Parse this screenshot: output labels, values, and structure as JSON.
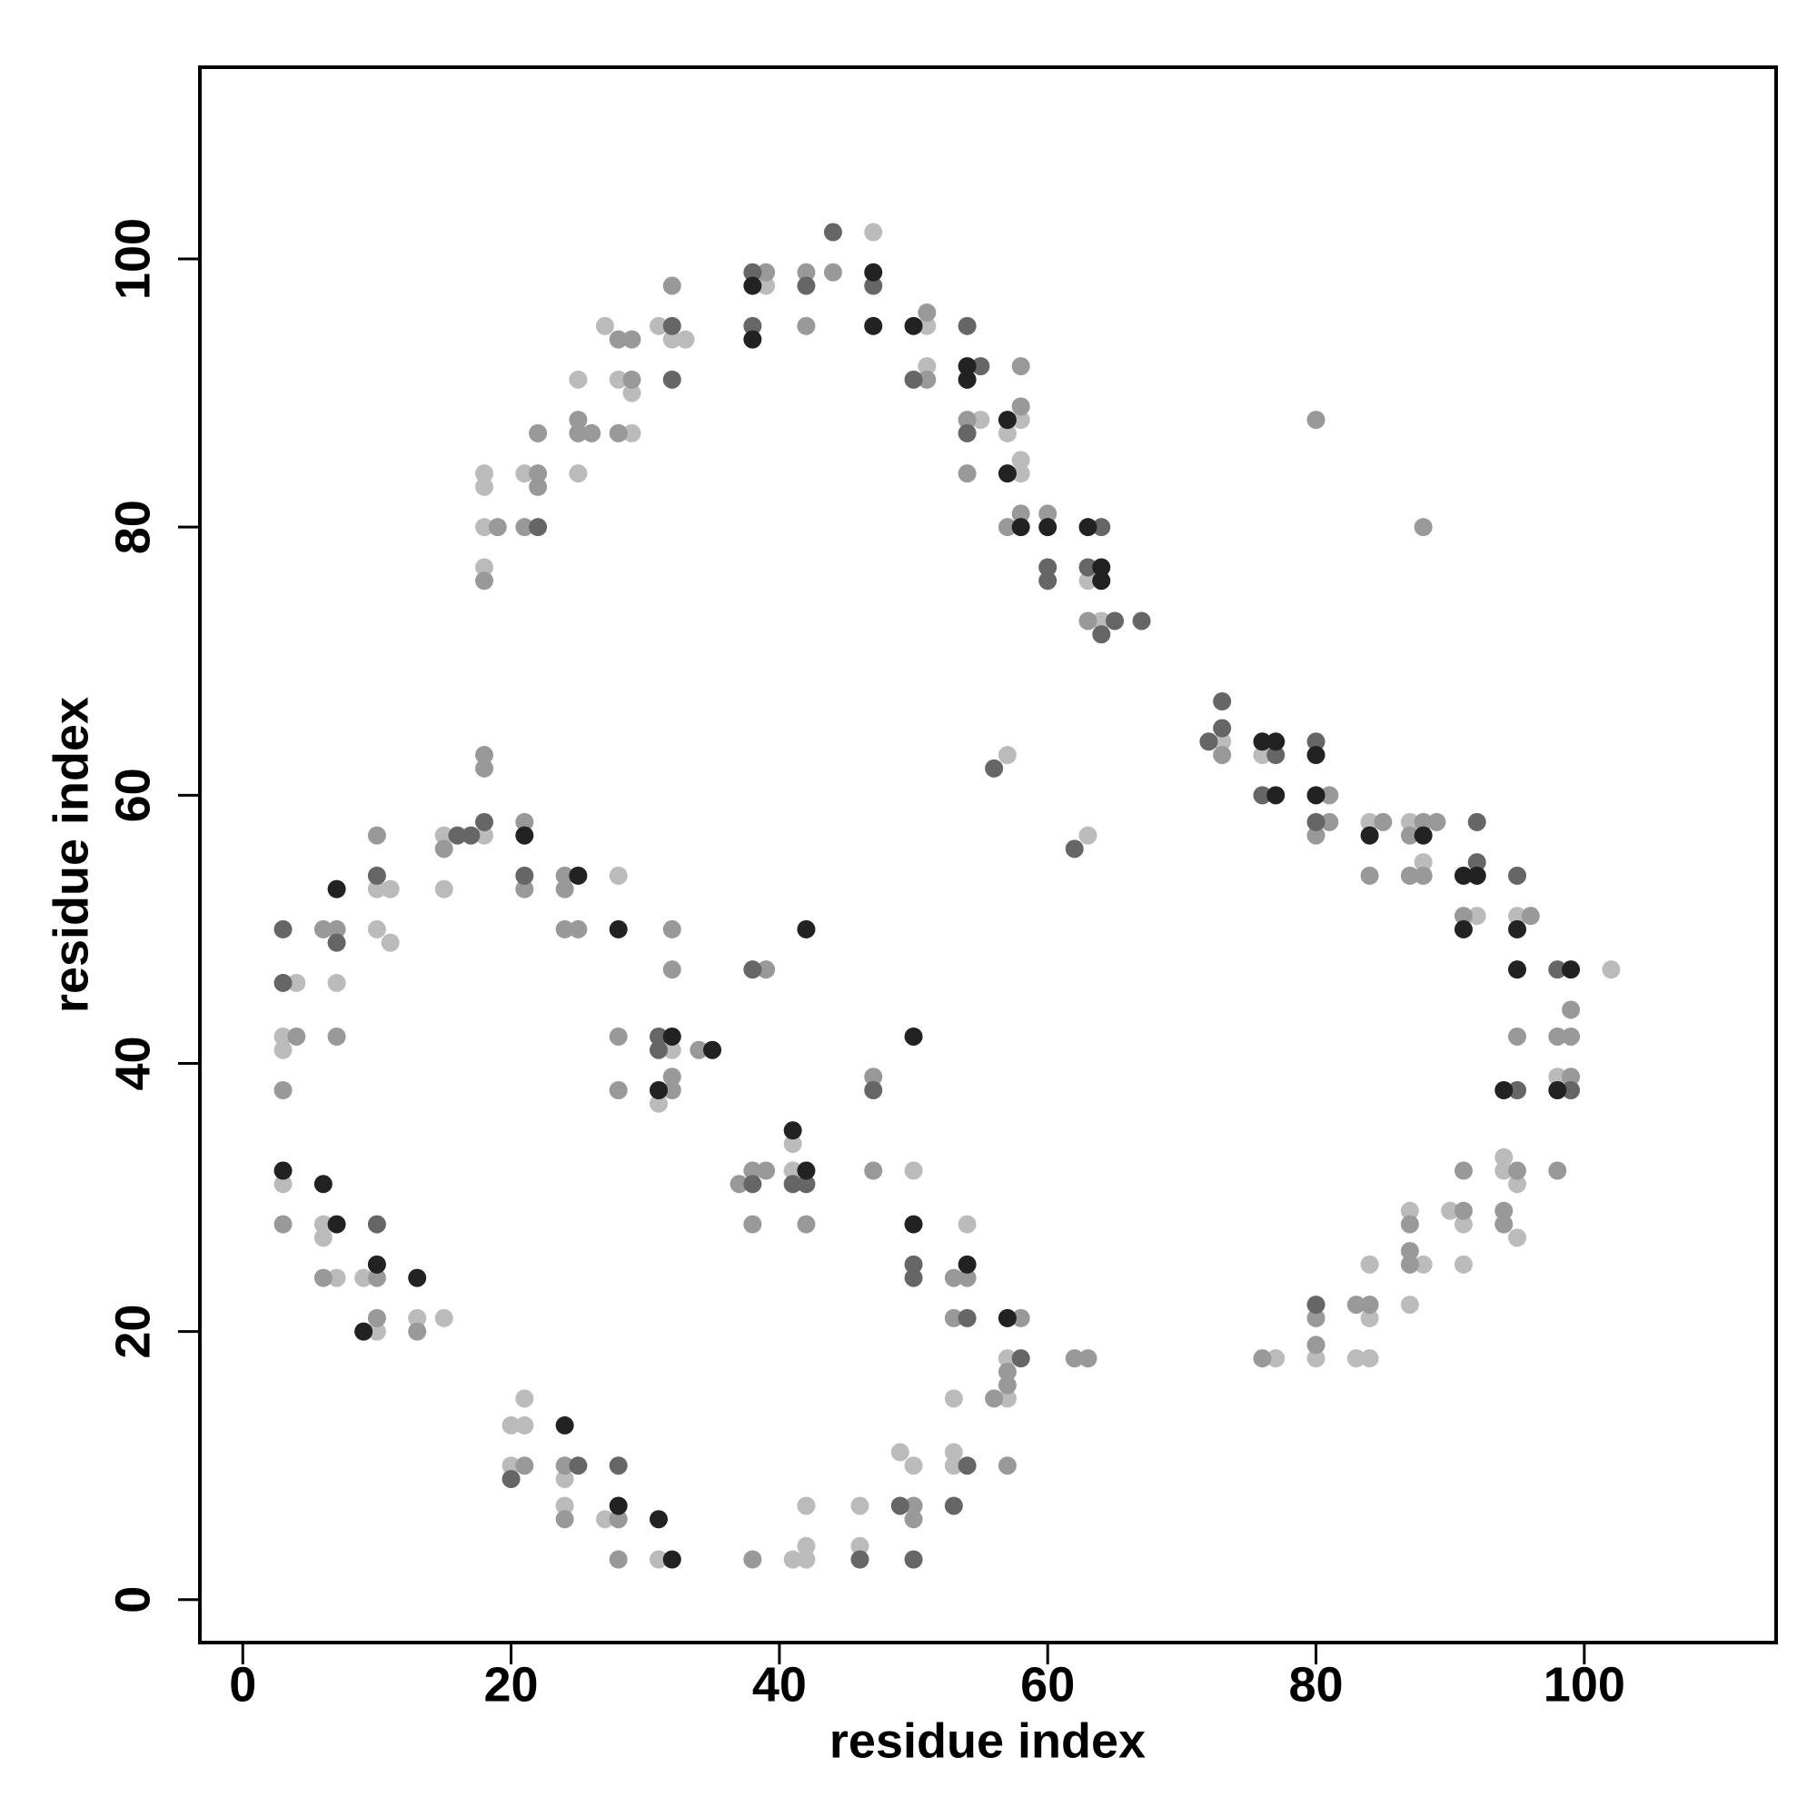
{
  "chart_data": {
    "type": "scatter",
    "xlabel": "residue index",
    "ylabel": "residue index",
    "xlim": [
      -3.2,
      114.3
    ],
    "ylim": [
      -3.2,
      114.3
    ],
    "xticks": [
      0,
      20,
      40,
      60,
      80,
      100
    ],
    "yticks": [
      0,
      20,
      40,
      60,
      80,
      100
    ],
    "series": [
      {
        "color": "#bbbbbb",
        "x": [
          47,
          39,
          51,
          31,
          27,
          32,
          33,
          25,
          28,
          51,
          29,
          29,
          55,
          58,
          57,
          18,
          21,
          25,
          18,
          58,
          58,
          18,
          18,
          63,
          64,
          73,
          76,
          84,
          87,
          88,
          92,
          95,
          102,
          98,
          94,
          94,
          95,
          90,
          91,
          95,
          87,
          88,
          91,
          84,
          87,
          84,
          80,
          83,
          84,
          77,
          57,
          63,
          18,
          15,
          15,
          10,
          11,
          10,
          11,
          4,
          7,
          3,
          3,
          28,
          32,
          31,
          41,
          41,
          50,
          3,
          6,
          6,
          7,
          9,
          10,
          13,
          15,
          54,
          57,
          57,
          53,
          53,
          53,
          49,
          50,
          20,
          21,
          21,
          20,
          24,
          24,
          27,
          31,
          41,
          42,
          42,
          42,
          46,
          46
        ],
        "y": [
          102,
          98,
          95,
          95,
          95,
          94,
          94,
          91,
          91,
          92,
          90,
          87,
          88,
          88,
          87,
          84,
          84,
          84,
          83,
          84,
          85,
          80,
          77,
          76,
          73,
          64,
          63,
          58,
          58,
          55,
          51,
          51,
          47,
          39,
          33,
          32,
          31,
          29,
          28,
          27,
          29,
          25,
          25,
          25,
          22,
          21,
          18,
          18,
          18,
          18,
          63,
          57,
          57,
          57,
          53,
          53,
          53,
          50,
          49,
          46,
          46,
          42,
          41,
          54,
          41,
          37,
          34,
          32,
          32,
          31,
          28,
          27,
          24,
          24,
          20,
          21,
          21,
          28,
          18,
          15,
          15,
          11,
          10,
          11,
          10,
          13,
          13,
          15,
          10,
          9,
          7,
          6,
          3,
          3,
          3,
          4,
          7,
          7,
          4
        ]
      },
      {
        "color": "#999999",
        "x": [
          39,
          42,
          44,
          32,
          42,
          51,
          28,
          29,
          29,
          51,
          58,
          25,
          25,
          26,
          28,
          22,
          54,
          58,
          22,
          22,
          54,
          19,
          21,
          57,
          58,
          60,
          18,
          63,
          80,
          88,
          73,
          81,
          81,
          80,
          85,
          88,
          89,
          87,
          84,
          87,
          88,
          91,
          96,
          99,
          95,
          98,
          99,
          99,
          91,
          95,
          98,
          91,
          94,
          94,
          87,
          87,
          87,
          83,
          84,
          80,
          80,
          76,
          62,
          63,
          18,
          18,
          15,
          21,
          21,
          10,
          6,
          7,
          4,
          7,
          3,
          24,
          24,
          24,
          25,
          32,
          32,
          28,
          28,
          34,
          32,
          32,
          39,
          47,
          38,
          39,
          37,
          38,
          42,
          47,
          3,
          6,
          10,
          10,
          13,
          53,
          54,
          53,
          58,
          57,
          57,
          56,
          57,
          21,
          24,
          24,
          28,
          28,
          38,
          50,
          50
        ],
        "y": [
          99,
          99,
          99,
          98,
          95,
          96,
          94,
          94,
          91,
          91,
          92,
          88,
          87,
          87,
          87,
          87,
          88,
          89,
          84,
          83,
          84,
          80,
          80,
          80,
          81,
          81,
          76,
          73,
          88,
          80,
          63,
          58,
          60,
          57,
          58,
          58,
          58,
          57,
          54,
          54,
          54,
          51,
          51,
          44,
          42,
          42,
          42,
          39,
          32,
          32,
          32,
          29,
          29,
          28,
          28,
          26,
          25,
          22,
          22,
          21,
          19,
          18,
          18,
          18,
          63,
          62,
          56,
          58,
          53,
          57,
          50,
          50,
          42,
          42,
          38,
          54,
          53,
          50,
          50,
          50,
          47,
          42,
          38,
          41,
          39,
          38,
          47,
          39,
          32,
          32,
          31,
          28,
          28,
          32,
          28,
          24,
          24,
          21,
          20,
          24,
          24,
          21,
          21,
          17,
          16,
          15,
          10,
          10,
          10,
          6,
          6,
          3,
          3,
          7,
          6
        ]
      },
      {
        "color": "#666666",
        "x": [
          44,
          38,
          42,
          47,
          38,
          54,
          32,
          32,
          50,
          55,
          54,
          22,
          64,
          60,
          60,
          63,
          65,
          64,
          67,
          73,
          72,
          73,
          77,
          80,
          76,
          80,
          92,
          92,
          95,
          98,
          95,
          99,
          80,
          56,
          62,
          18,
          16,
          17,
          21,
          10,
          7,
          3,
          3,
          31,
          31,
          38,
          47,
          38,
          41,
          42,
          10,
          50,
          50,
          54,
          58,
          54,
          20,
          25,
          28,
          46,
          49,
          50,
          53
        ],
        "y": [
          102,
          99,
          98,
          98,
          95,
          95,
          95,
          91,
          91,
          92,
          87,
          80,
          80,
          77,
          76,
          77,
          73,
          72,
          73,
          67,
          64,
          65,
          63,
          64,
          60,
          58,
          58,
          55,
          54,
          47,
          38,
          38,
          22,
          62,
          56,
          58,
          57,
          57,
          54,
          54,
          49,
          50,
          46,
          42,
          41,
          47,
          38,
          31,
          31,
          31,
          28,
          25,
          24,
          21,
          18,
          10,
          9,
          10,
          10,
          3,
          7,
          3,
          7
        ]
      },
      {
        "color": "#222222",
        "x": [
          47,
          38,
          47,
          50,
          38,
          54,
          54,
          57,
          57,
          58,
          60,
          63,
          64,
          64,
          76,
          77,
          80,
          77,
          80,
          84,
          88,
          91,
          92,
          91,
          95,
          95,
          99,
          94,
          98,
          21,
          7,
          25,
          28,
          32,
          35,
          31,
          42,
          50,
          41,
          42,
          3,
          6,
          7,
          10,
          9,
          13,
          50,
          54,
          57,
          24,
          28,
          31,
          32
        ],
        "y": [
          99,
          98,
          95,
          95,
          94,
          92,
          91,
          88,
          84,
          80,
          80,
          80,
          77,
          76,
          64,
          64,
          63,
          60,
          60,
          57,
          57,
          54,
          54,
          50,
          50,
          47,
          47,
          38,
          38,
          57,
          53,
          54,
          50,
          42,
          41,
          38,
          50,
          42,
          35,
          32,
          32,
          31,
          28,
          25,
          20,
          24,
          28,
          25,
          21,
          13,
          7,
          6,
          3
        ]
      }
    ]
  }
}
